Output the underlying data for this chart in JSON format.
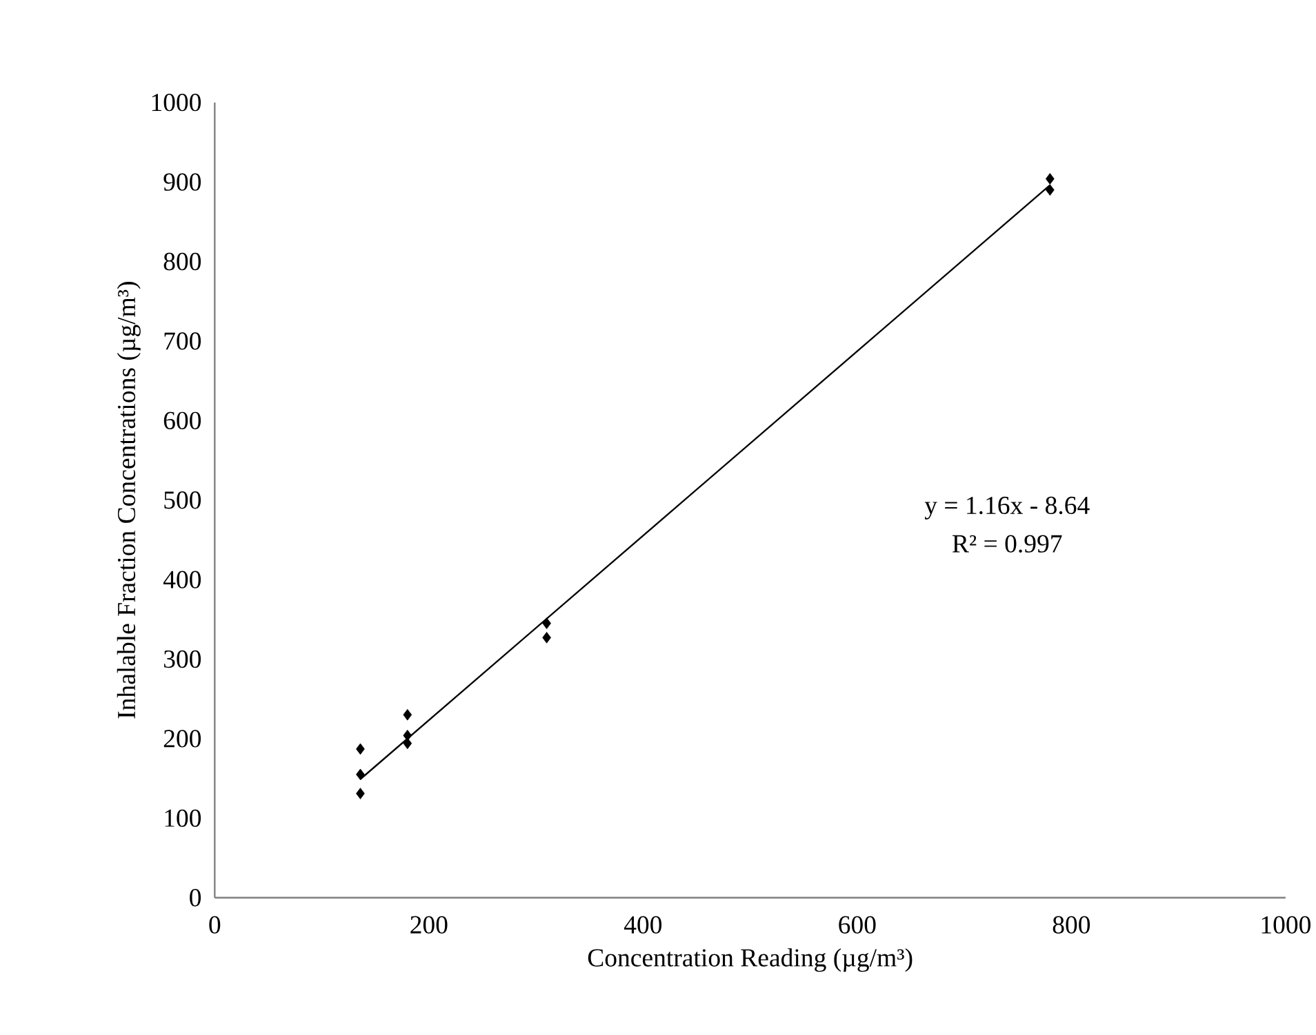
{
  "chart_data": {
    "type": "scatter",
    "xlabel": "Concentration Reading (µg/m³)",
    "ylabel": "Inhalable Fraction Concentrations (µg/m³)",
    "xlim": [
      0,
      1000
    ],
    "ylim": [
      0,
      1000
    ],
    "xticks": [
      0,
      200,
      400,
      600,
      800,
      1000
    ],
    "yticks": [
      0,
      100,
      200,
      300,
      400,
      500,
      600,
      700,
      800,
      900,
      1000
    ],
    "grid": false,
    "annotations": [
      "y = 1.16x - 8.64",
      "R² = 0.997"
    ],
    "series": [
      {
        "marker": "diamond",
        "color": "#000000",
        "x": [
          136,
          136,
          136,
          180,
          180,
          180,
          310,
          310,
          780,
          780
        ],
        "values": [
          187,
          155,
          131,
          230,
          204,
          194,
          345,
          327,
          904,
          890
        ]
      },
      {
        "type": "line",
        "marker": "none",
        "color": "#000000",
        "x": [
          136,
          780
        ],
        "values": [
          149,
          896
        ]
      }
    ]
  }
}
